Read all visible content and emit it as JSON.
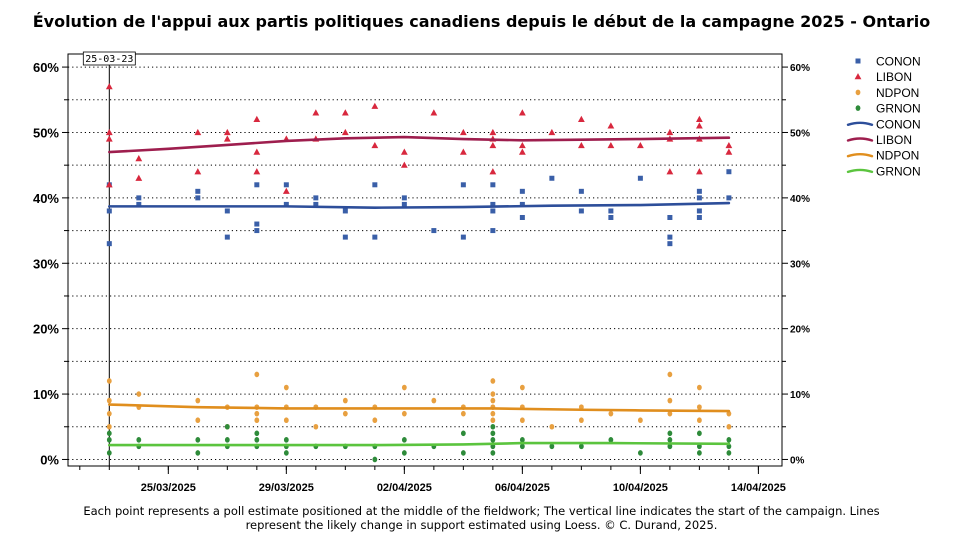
{
  "chart_data": {
    "type": "scatter",
    "title": "Évolution de l'appui aux partis politiques canadiens depuis le début de la campagne 2025 - Ontario",
    "footnote": [
      "Each point represents a poll estimate positioned at the middle of the fieldwork; The vertical line indicates the start of the campaign. Lines",
      "represent the likely change in support estimated using Loess.  © C. Durand, 2025."
    ],
    "x_axis": {
      "type": "date",
      "range": [
        "2025-03-21.6",
        "2025-04-14.8"
      ],
      "ticks": [
        {
          "date": "2025-03-25",
          "label": "25/03/2025"
        },
        {
          "date": "2025-03-29",
          "label": "29/03/2025"
        },
        {
          "date": "2025-04-02",
          "label": "02/04/2025"
        },
        {
          "date": "2025-04-06",
          "label": "06/04/2025"
        },
        {
          "date": "2025-04-10",
          "label": "10/04/2025"
        },
        {
          "date": "2025-04-14",
          "label": "14/04/2025"
        }
      ]
    },
    "y_axis": {
      "range": [
        -1,
        62
      ],
      "major_ticks": [
        0,
        10,
        20,
        30,
        40,
        50,
        60
      ],
      "left_labels": [
        "0%",
        "10%",
        "20%",
        "30%",
        "40%",
        "50%",
        "60%"
      ],
      "right_labels": [
        "0%",
        "10%",
        "20%",
        "30%",
        "40%",
        "50%",
        "60%"
      ],
      "grid": "dotted horizontal lines every 5%"
    },
    "campaign_start": {
      "date": "2025-03-23",
      "label": "25-03-23"
    },
    "legend": {
      "placement": "right",
      "items": [
        {
          "label": "CONON",
          "kind": "square",
          "color": "#3A5FA8"
        },
        {
          "label": "LIBON",
          "kind": "triangle",
          "color": "#D8283E"
        },
        {
          "label": "NDPON",
          "kind": "circle",
          "color": "#E8A040"
        },
        {
          "label": "GRNON",
          "kind": "circle",
          "color": "#2E8B3A"
        },
        {
          "label": "CONON",
          "kind": "line",
          "color": "#2D4E9A"
        },
        {
          "label": "LIBON",
          "kind": "line",
          "color": "#9E1E4E"
        },
        {
          "label": "NDPON",
          "kind": "line",
          "color": "#E08E1E"
        },
        {
          "label": "GRNON",
          "kind": "line",
          "color": "#5BC43E"
        }
      ]
    },
    "series": [
      {
        "name": "CONON",
        "kind": "points",
        "marker": "square",
        "color": "#3A5FA8",
        "points": [
          [
            "2025-03-23",
            38
          ],
          [
            "2025-03-23",
            33
          ],
          [
            "2025-03-23",
            42
          ],
          [
            "2025-03-24",
            39
          ],
          [
            "2025-03-24",
            40
          ],
          [
            "2025-03-26",
            41
          ],
          [
            "2025-03-26",
            40
          ],
          [
            "2025-03-27",
            38
          ],
          [
            "2025-03-27",
            34
          ],
          [
            "2025-03-28",
            42
          ],
          [
            "2025-03-28",
            36
          ],
          [
            "2025-03-28",
            35
          ],
          [
            "2025-03-29",
            42
          ],
          [
            "2025-03-29",
            39
          ],
          [
            "2025-03-30",
            40
          ],
          [
            "2025-03-30",
            39
          ],
          [
            "2025-03-31",
            38
          ],
          [
            "2025-03-31",
            34
          ],
          [
            "2025-04-01",
            42
          ],
          [
            "2025-04-01",
            34
          ],
          [
            "2025-04-02",
            40
          ],
          [
            "2025-04-02",
            39
          ],
          [
            "2025-04-03",
            35
          ],
          [
            "2025-04-04",
            42
          ],
          [
            "2025-04-04",
            34
          ],
          [
            "2025-04-05",
            42
          ],
          [
            "2025-04-05",
            39
          ],
          [
            "2025-04-05",
            38
          ],
          [
            "2025-04-05",
            35
          ],
          [
            "2025-04-06",
            41
          ],
          [
            "2025-04-06",
            39
          ],
          [
            "2025-04-06",
            37
          ],
          [
            "2025-04-07",
            43
          ],
          [
            "2025-04-08",
            41
          ],
          [
            "2025-04-08",
            38
          ],
          [
            "2025-04-09",
            38
          ],
          [
            "2025-04-09",
            37
          ],
          [
            "2025-04-10",
            43
          ],
          [
            "2025-04-11",
            37
          ],
          [
            "2025-04-11",
            34
          ],
          [
            "2025-04-11",
            33
          ],
          [
            "2025-04-12",
            41
          ],
          [
            "2025-04-12",
            40
          ],
          [
            "2025-04-12",
            38
          ],
          [
            "2025-04-12",
            37
          ],
          [
            "2025-04-13",
            44
          ],
          [
            "2025-04-13",
            40
          ]
        ]
      },
      {
        "name": "LIBON",
        "kind": "points",
        "marker": "triangle",
        "color": "#D8283E",
        "points": [
          [
            "2025-03-23",
            57
          ],
          [
            "2025-03-23",
            50
          ],
          [
            "2025-03-23",
            49
          ],
          [
            "2025-03-23",
            42
          ],
          [
            "2025-03-24",
            46
          ],
          [
            "2025-03-24",
            43
          ],
          [
            "2025-03-26",
            50
          ],
          [
            "2025-03-26",
            44
          ],
          [
            "2025-03-27",
            50
          ],
          [
            "2025-03-27",
            49
          ],
          [
            "2025-03-28",
            52
          ],
          [
            "2025-03-28",
            47
          ],
          [
            "2025-03-28",
            44
          ],
          [
            "2025-03-29",
            49
          ],
          [
            "2025-03-29",
            41
          ],
          [
            "2025-03-30",
            53
          ],
          [
            "2025-03-30",
            49
          ],
          [
            "2025-03-31",
            53
          ],
          [
            "2025-03-31",
            50
          ],
          [
            "2025-04-01",
            54
          ],
          [
            "2025-04-01",
            48
          ],
          [
            "2025-04-02",
            47
          ],
          [
            "2025-04-02",
            45
          ],
          [
            "2025-04-03",
            53
          ],
          [
            "2025-04-04",
            50
          ],
          [
            "2025-04-04",
            47
          ],
          [
            "2025-04-05",
            50
          ],
          [
            "2025-04-05",
            49
          ],
          [
            "2025-04-05",
            48
          ],
          [
            "2025-04-05",
            44
          ],
          [
            "2025-04-06",
            53
          ],
          [
            "2025-04-06",
            48
          ],
          [
            "2025-04-06",
            47
          ],
          [
            "2025-04-07",
            50
          ],
          [
            "2025-04-08",
            52
          ],
          [
            "2025-04-08",
            48
          ],
          [
            "2025-04-09",
            51
          ],
          [
            "2025-04-09",
            48
          ],
          [
            "2025-04-10",
            48
          ],
          [
            "2025-04-11",
            50
          ],
          [
            "2025-04-11",
            49
          ],
          [
            "2025-04-11",
            44
          ],
          [
            "2025-04-12",
            52
          ],
          [
            "2025-04-12",
            51
          ],
          [
            "2025-04-12",
            49
          ],
          [
            "2025-04-12",
            44
          ],
          [
            "2025-04-13",
            48
          ],
          [
            "2025-04-13",
            47
          ]
        ]
      },
      {
        "name": "NDPON",
        "kind": "points",
        "marker": "circle",
        "color": "#E8A040",
        "points": [
          [
            "2025-03-23",
            12
          ],
          [
            "2025-03-23",
            9
          ],
          [
            "2025-03-23",
            7
          ],
          [
            "2025-03-23",
            5
          ],
          [
            "2025-03-24",
            10
          ],
          [
            "2025-03-24",
            8
          ],
          [
            "2025-03-26",
            9
          ],
          [
            "2025-03-26",
            6
          ],
          [
            "2025-03-27",
            8
          ],
          [
            "2025-03-27",
            5
          ],
          [
            "2025-03-28",
            13
          ],
          [
            "2025-03-28",
            8
          ],
          [
            "2025-03-28",
            7
          ],
          [
            "2025-03-28",
            6
          ],
          [
            "2025-03-29",
            11
          ],
          [
            "2025-03-29",
            8
          ],
          [
            "2025-03-29",
            6
          ],
          [
            "2025-03-30",
            8
          ],
          [
            "2025-03-30",
            5
          ],
          [
            "2025-03-31",
            9
          ],
          [
            "2025-03-31",
            7
          ],
          [
            "2025-04-01",
            8
          ],
          [
            "2025-04-01",
            6
          ],
          [
            "2025-04-02",
            11
          ],
          [
            "2025-04-02",
            7
          ],
          [
            "2025-04-03",
            9
          ],
          [
            "2025-04-04",
            8
          ],
          [
            "2025-04-04",
            7
          ],
          [
            "2025-04-05",
            12
          ],
          [
            "2025-04-05",
            10
          ],
          [
            "2025-04-05",
            9
          ],
          [
            "2025-04-05",
            8
          ],
          [
            "2025-04-05",
            7
          ],
          [
            "2025-04-05",
            6
          ],
          [
            "2025-04-06",
            11
          ],
          [
            "2025-04-06",
            8
          ],
          [
            "2025-04-06",
            6
          ],
          [
            "2025-04-07",
            5
          ],
          [
            "2025-04-08",
            8
          ],
          [
            "2025-04-08",
            6
          ],
          [
            "2025-04-09",
            7
          ],
          [
            "2025-04-10",
            6
          ],
          [
            "2025-04-11",
            13
          ],
          [
            "2025-04-11",
            9
          ],
          [
            "2025-04-11",
            7
          ],
          [
            "2025-04-12",
            11
          ],
          [
            "2025-04-12",
            8
          ],
          [
            "2025-04-12",
            6
          ],
          [
            "2025-04-13",
            7
          ],
          [
            "2025-04-13",
            5
          ]
        ]
      },
      {
        "name": "GRNON",
        "kind": "points",
        "marker": "circle",
        "color": "#2E8B3A",
        "points": [
          [
            "2025-03-23",
            4
          ],
          [
            "2025-03-23",
            3
          ],
          [
            "2025-03-23",
            1
          ],
          [
            "2025-03-24",
            3
          ],
          [
            "2025-03-24",
            2
          ],
          [
            "2025-03-26",
            3
          ],
          [
            "2025-03-26",
            1
          ],
          [
            "2025-03-27",
            5
          ],
          [
            "2025-03-27",
            3
          ],
          [
            "2025-03-27",
            2
          ],
          [
            "2025-03-28",
            4
          ],
          [
            "2025-03-28",
            3
          ],
          [
            "2025-03-28",
            2
          ],
          [
            "2025-03-29",
            3
          ],
          [
            "2025-03-29",
            2
          ],
          [
            "2025-03-29",
            1
          ],
          [
            "2025-03-30",
            2
          ],
          [
            "2025-03-31",
            2
          ],
          [
            "2025-04-01",
            2
          ],
          [
            "2025-04-01",
            0
          ],
          [
            "2025-04-02",
            3
          ],
          [
            "2025-04-02",
            1
          ],
          [
            "2025-04-03",
            2
          ],
          [
            "2025-04-04",
            4
          ],
          [
            "2025-04-04",
            1
          ],
          [
            "2025-04-05",
            5
          ],
          [
            "2025-04-05",
            4
          ],
          [
            "2025-04-05",
            3
          ],
          [
            "2025-04-05",
            2
          ],
          [
            "2025-04-05",
            1
          ],
          [
            "2025-04-06",
            3
          ],
          [
            "2025-04-06",
            2
          ],
          [
            "2025-04-07",
            2
          ],
          [
            "2025-04-08",
            2
          ],
          [
            "2025-04-09",
            3
          ],
          [
            "2025-04-10",
            1
          ],
          [
            "2025-04-11",
            4
          ],
          [
            "2025-04-11",
            3
          ],
          [
            "2025-04-11",
            2
          ],
          [
            "2025-04-12",
            4
          ],
          [
            "2025-04-12",
            2
          ],
          [
            "2025-04-12",
            1
          ],
          [
            "2025-04-13",
            3
          ],
          [
            "2025-04-13",
            2
          ],
          [
            "2025-04-13",
            1
          ]
        ]
      },
      {
        "name": "CONON",
        "kind": "line",
        "color": "#2D4E9A",
        "points": [
          [
            "2025-03-23",
            38.7
          ],
          [
            "2025-03-25",
            38.7
          ],
          [
            "2025-03-29",
            38.7
          ],
          [
            "2025-04-01",
            38.5
          ],
          [
            "2025-04-04",
            38.6
          ],
          [
            "2025-04-07",
            38.8
          ],
          [
            "2025-04-10",
            38.9
          ],
          [
            "2025-04-13",
            39.2
          ]
        ]
      },
      {
        "name": "LIBON",
        "kind": "line",
        "color": "#9E1E4E",
        "points": [
          [
            "2025-03-23",
            47.0
          ],
          [
            "2025-03-25",
            47.5
          ],
          [
            "2025-03-27",
            48.1
          ],
          [
            "2025-03-29",
            48.7
          ],
          [
            "2025-03-31",
            49.1
          ],
          [
            "2025-04-02",
            49.3
          ],
          [
            "2025-04-04",
            49.0
          ],
          [
            "2025-04-06",
            48.8
          ],
          [
            "2025-04-08",
            48.9
          ],
          [
            "2025-04-10",
            49.0
          ],
          [
            "2025-04-13",
            49.2
          ]
        ]
      },
      {
        "name": "NDPON",
        "kind": "line",
        "color": "#E08E1E",
        "points": [
          [
            "2025-03-23",
            8.4
          ],
          [
            "2025-03-26",
            8.0
          ],
          [
            "2025-03-29",
            7.8
          ],
          [
            "2025-04-02",
            7.8
          ],
          [
            "2025-04-05",
            7.8
          ],
          [
            "2025-04-08",
            7.6
          ],
          [
            "2025-04-10",
            7.5
          ],
          [
            "2025-04-13",
            7.4
          ]
        ]
      },
      {
        "name": "GRNON",
        "kind": "line",
        "color": "#5BC43E",
        "points": [
          [
            "2025-03-23",
            2.2
          ],
          [
            "2025-03-27",
            2.2
          ],
          [
            "2025-04-01",
            2.2
          ],
          [
            "2025-04-04",
            2.3
          ],
          [
            "2025-04-06",
            2.5
          ],
          [
            "2025-04-09",
            2.5
          ],
          [
            "2025-04-13",
            2.4
          ]
        ]
      }
    ]
  }
}
